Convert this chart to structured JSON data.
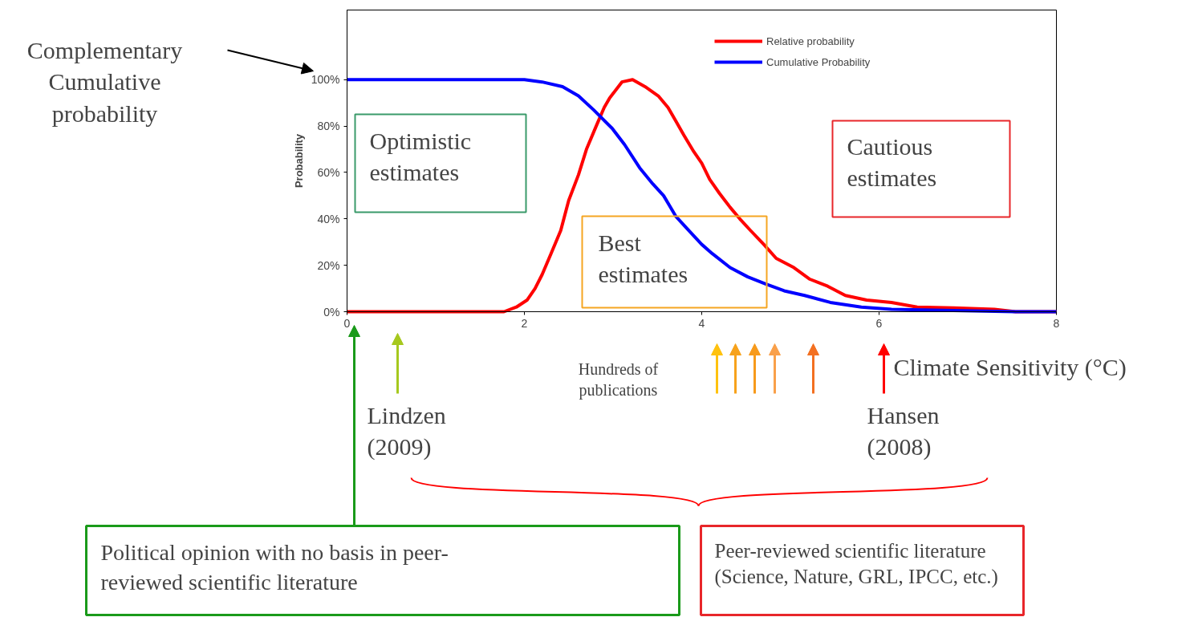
{
  "chart_data": {
    "type": "line",
    "xlabel": "Climate Sensitivity (°C)",
    "ylabel": "Probability",
    "xlim": [
      0,
      8
    ],
    "xticks": [
      0,
      2,
      4,
      6,
      8
    ],
    "ylim": [
      0,
      130
    ],
    "yticks": [
      {
        "value": 0,
        "label": "0%"
      },
      {
        "value": 20,
        "label": "20%"
      },
      {
        "value": 40,
        "label": "40%"
      },
      {
        "value": 60,
        "label": "60%"
      },
      {
        "value": 80,
        "label": "80%"
      },
      {
        "value": 100,
        "label": "100%"
      }
    ],
    "grid": false,
    "legend": "top right",
    "line_style": "solid",
    "marker": "none",
    "series": [
      {
        "name": "Relative probability",
        "color": "#ff0000",
        "x": [
          0,
          1.77,
          1.91,
          2.03,
          2.12,
          2.2,
          2.3,
          2.41,
          2.5,
          2.61,
          2.7,
          2.81,
          2.9,
          2.96,
          3.1,
          3.22,
          3.36,
          3.51,
          3.62,
          3.71,
          3.8,
          3.91,
          4.0,
          4.09,
          4.2,
          4.32,
          4.43,
          4.55,
          4.7,
          4.84,
          5.04,
          5.22,
          5.42,
          5.62,
          5.86,
          6.14,
          6.43,
          6.84,
          7.3,
          7.54,
          8
        ],
        "values": [
          0,
          0,
          2,
          5,
          10,
          16,
          25,
          35,
          48,
          59,
          70,
          80,
          88,
          92,
          99,
          100,
          97,
          93,
          88,
          82,
          76,
          69,
          64,
          57,
          51,
          45,
          40,
          35,
          29,
          23,
          19,
          14,
          11,
          7,
          5,
          4,
          2,
          1.6,
          1,
          0,
          0
        ]
      },
      {
        "name": "Cumulative Probability",
        "color": "#0000ff",
        "x": [
          0,
          2.0,
          2.2,
          2.43,
          2.61,
          2.78,
          2.99,
          3.13,
          3.3,
          3.45,
          3.57,
          3.71,
          3.83,
          4.0,
          4.12,
          4.32,
          4.52,
          4.72,
          4.93,
          5.16,
          5.45,
          5.8,
          6.14,
          6.6,
          7.54,
          8
        ],
        "values": [
          100,
          100,
          99,
          97,
          93,
          87,
          79,
          72,
          62,
          55,
          50,
          41,
          36,
          29,
          25,
          19,
          15,
          12,
          9,
          7,
          4,
          2,
          1,
          0.7,
          0,
          0
        ]
      }
    ],
    "annotations": [
      "Complementary\nCumulative\nprobability",
      "Optimistic\nestimates",
      "Best\nestimates",
      "Cautious\nestimates",
      "Hundreds of\npublications",
      "Lindzen\n(2009)",
      "Hansen\n(2008)",
      "Political opinion with no basis in peer-\nreviewed scientific literature",
      "Peer-reviewed scientific literature\n(Science, Nature, GRL, IPCC, etc.)"
    ]
  }
}
